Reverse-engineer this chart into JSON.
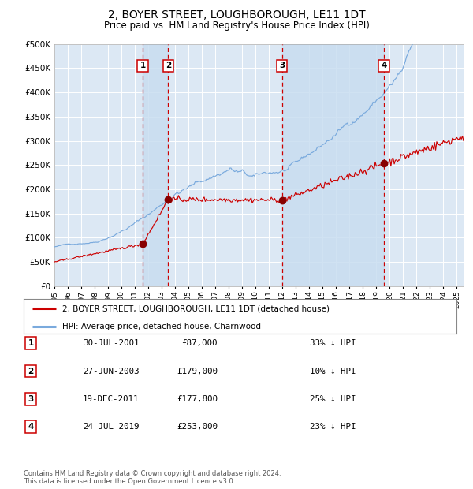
{
  "title": "2, BOYER STREET, LOUGHBOROUGH, LE11 1DT",
  "subtitle": "Price paid vs. HM Land Registry's House Price Index (HPI)",
  "title_fontsize": 10,
  "subtitle_fontsize": 8.5,
  "background_color": "#ffffff",
  "plot_bg_color": "#dce8f4",
  "grid_color": "#ffffff",
  "hpi_color": "#7aaadd",
  "price_color": "#cc0000",
  "sale_marker_color": "#880000",
  "vline_color": "#cc0000",
  "shade_color": "#c8ddf0",
  "ylim": [
    0,
    500000
  ],
  "yticks": [
    0,
    50000,
    100000,
    150000,
    200000,
    250000,
    300000,
    350000,
    400000,
    450000,
    500000
  ],
  "ytick_labels": [
    "£0",
    "£50K",
    "£100K",
    "£150K",
    "£200K",
    "£250K",
    "£300K",
    "£350K",
    "£400K",
    "£450K",
    "£500K"
  ],
  "sales": [
    {
      "date_num": 2001.58,
      "price": 87000,
      "label": "1"
    },
    {
      "date_num": 2003.49,
      "price": 179000,
      "label": "2"
    },
    {
      "date_num": 2011.97,
      "price": 177800,
      "label": "3"
    },
    {
      "date_num": 2019.56,
      "price": 253000,
      "label": "4"
    }
  ],
  "legend_entries": [
    {
      "label": "2, BOYER STREET, LOUGHBOROUGH, LE11 1DT (detached house)",
      "color": "#cc0000"
    },
    {
      "label": "HPI: Average price, detached house, Charnwood",
      "color": "#7aaadd"
    }
  ],
  "table_rows": [
    {
      "num": "1",
      "date": "30-JUL-2001",
      "price": "£87,000",
      "hpi": "33% ↓ HPI"
    },
    {
      "num": "2",
      "date": "27-JUN-2003",
      "price": "£179,000",
      "hpi": "10% ↓ HPI"
    },
    {
      "num": "3",
      "date": "19-DEC-2011",
      "price": "£177,800",
      "hpi": "25% ↓ HPI"
    },
    {
      "num": "4",
      "date": "24-JUL-2019",
      "price": "£253,000",
      "hpi": "23% ↓ HPI"
    }
  ],
  "footnote": "Contains HM Land Registry data © Crown copyright and database right 2024.\nThis data is licensed under the Open Government Licence v3.0.",
  "xstart": 1995.0,
  "xend": 2025.5
}
